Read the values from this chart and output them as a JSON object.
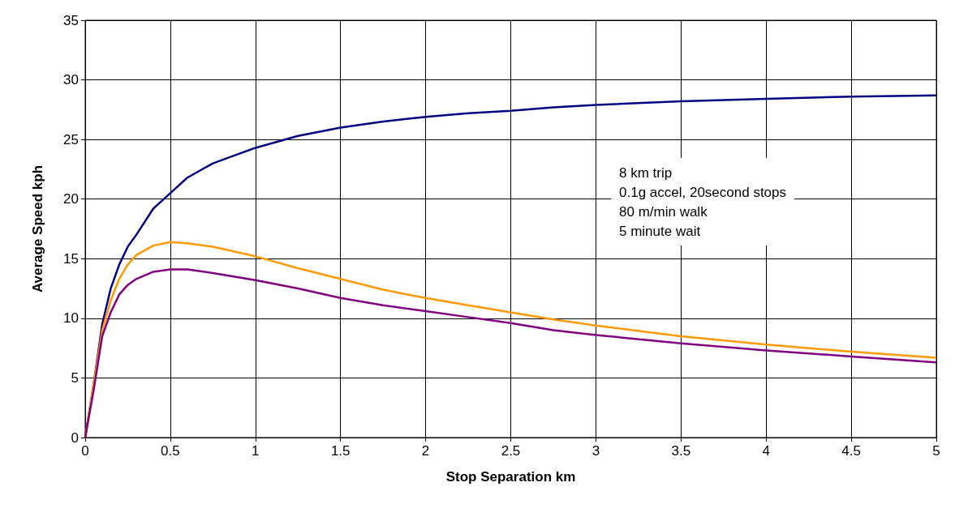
{
  "chart_data": {
    "type": "line",
    "xlabel": "Stop Separation km",
    "ylabel": "Average Speed kph",
    "x": [
      0,
      0.05,
      0.1,
      0.15,
      0.2,
      0.25,
      0.3,
      0.4,
      0.5,
      0.6,
      0.75,
      1,
      1.25,
      1.5,
      1.75,
      2,
      2.25,
      2.5,
      2.75,
      3,
      3.5,
      4,
      4.5,
      5
    ],
    "series": [
      {
        "color": "#000080",
        "values": [
          0,
          4.5,
          9.5,
          12.5,
          14.5,
          16,
          17,
          19.2,
          20.5,
          21.8,
          23,
          24.3,
          25.3,
          26,
          26.5,
          26.9,
          27.2,
          27.4,
          27.7,
          27.9,
          28.2,
          28.4,
          28.6,
          28.7
        ]
      },
      {
        "color": "#ff9900",
        "values": [
          0,
          4.5,
          9,
          11.5,
          13.3,
          14.5,
          15.3,
          16.1,
          16.4,
          16.3,
          16,
          15.2,
          14.2,
          13.3,
          12.4,
          11.7,
          11.1,
          10.5,
          9.9,
          9.4,
          8.5,
          7.8,
          7.2,
          6.7
        ]
      },
      {
        "color": "#800080",
        "values": [
          0,
          4,
          8.5,
          10.5,
          12,
          12.8,
          13.3,
          13.9,
          14.1,
          14.1,
          13.8,
          13.2,
          12.5,
          11.7,
          11.1,
          10.6,
          10.1,
          9.6,
          9,
          8.6,
          7.9,
          7.3,
          6.8,
          6.3
        ]
      }
    ],
    "xlim": [
      0,
      5
    ],
    "xticks": [
      0,
      0.5,
      1,
      1.5,
      2,
      2.5,
      3,
      3.5,
      4,
      4.5,
      5
    ],
    "ylim": [
      0,
      35
    ],
    "yticks": [
      0,
      5,
      10,
      15,
      20,
      25,
      30,
      35
    ],
    "grid": true,
    "marker": "none",
    "line_style": "solid",
    "annotations": [
      "8 km trip",
      "0.1g accel, 20second stops",
      "80 m/min walk",
      "5 minute wait"
    ]
  }
}
